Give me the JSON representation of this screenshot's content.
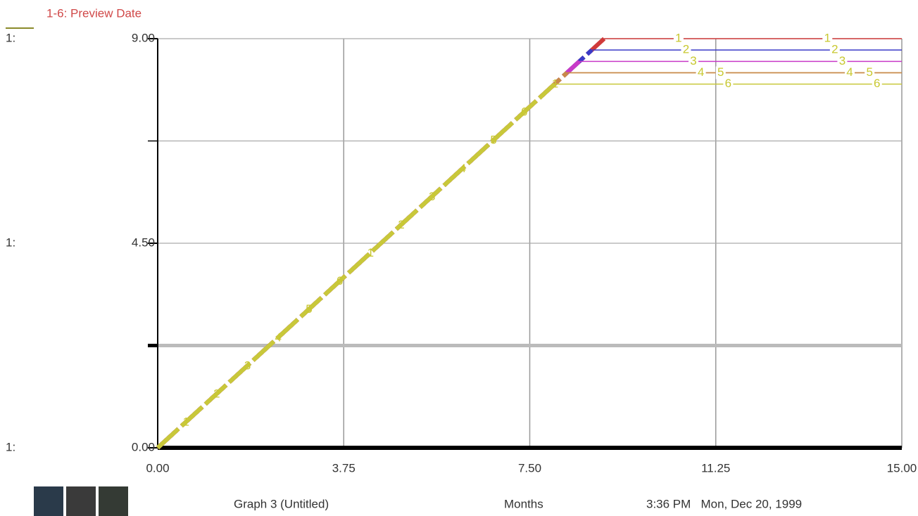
{
  "chart_data": {
    "type": "line",
    "title": "1-6: Preview Date",
    "footer": {
      "graph": "Graph 3 (Untitled)",
      "x_unit": "Months",
      "timestamp": "3:36 PM   Mon, Dec 20, 1999"
    },
    "xlim": [
      0,
      15
    ],
    "xticks": [
      {
        "value": 0,
        "label": "0.00"
      },
      {
        "value": 3.75,
        "label": "3.75"
      },
      {
        "value": 7.5,
        "label": "7.50"
      },
      {
        "value": 11.25,
        "label": "11.25"
      },
      {
        "value": 15,
        "label": "15.00"
      }
    ],
    "ylim": [
      0,
      9
    ],
    "yticks": [
      {
        "value": 0,
        "label": "0.00"
      },
      {
        "value": 4.5,
        "label": "4.50"
      },
      {
        "value": 9,
        "label": "9.00"
      }
    ],
    "ytick_prefix": [
      "1:",
      "1:",
      "1:"
    ],
    "yminor": [
      2.25,
      6.75
    ],
    "grid": true,
    "series": [
      {
        "name": "1",
        "color": "#d03a3a",
        "x": [
          0,
          9,
          15
        ],
        "values": [
          0,
          9,
          9
        ]
      },
      {
        "name": "2",
        "color": "#3a3ac8",
        "x": [
          0,
          8.75,
          15
        ],
        "values": [
          0,
          8.75,
          8.75
        ]
      },
      {
        "name": "3",
        "color": "#c83ac8",
        "x": [
          0,
          8.5,
          15
        ],
        "values": [
          0,
          8.5,
          8.5
        ]
      },
      {
        "name": "4",
        "color": "#d08a3a",
        "x": [
          0,
          8.25,
          15
        ],
        "values": [
          0,
          8.25,
          8.25
        ]
      },
      {
        "name": "5",
        "color": "#c88a4a",
        "x": [
          0,
          8.25,
          15
        ],
        "values": [
          0,
          8.25,
          8.25
        ]
      },
      {
        "name": "6",
        "color": "#c8c83a",
        "x": [
          0,
          8,
          15
        ],
        "values": [
          0,
          8,
          8
        ]
      }
    ]
  }
}
